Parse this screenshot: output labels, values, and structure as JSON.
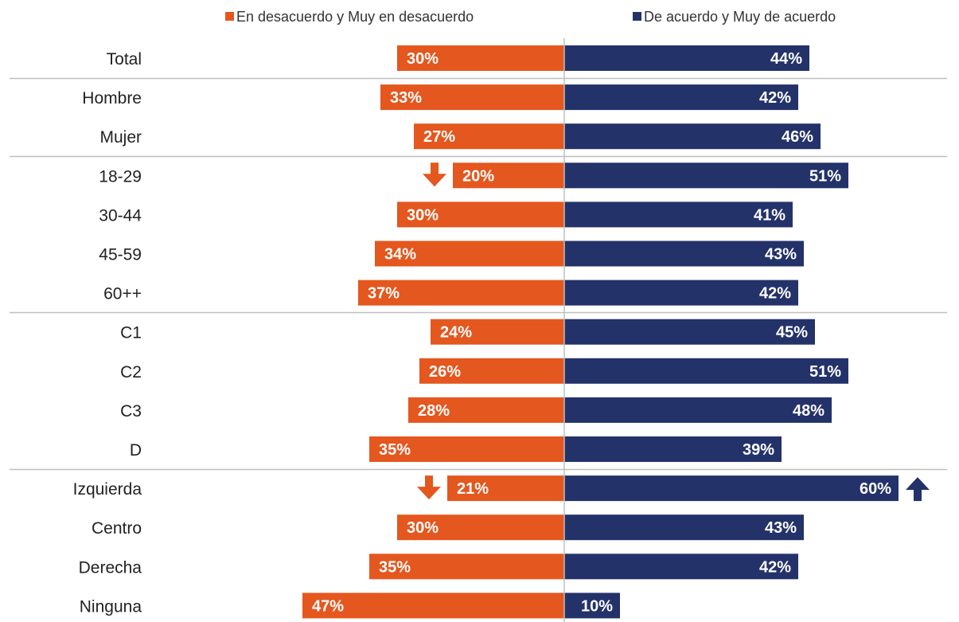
{
  "chart_data": {
    "type": "bar",
    "orientation": "horizontal-diverging",
    "grid": false,
    "legend_position": "top",
    "categories": [
      "Total",
      "Hombre",
      "Mujer",
      "18-29",
      "30-44",
      "45-59",
      "60++",
      "C1",
      "C2",
      "C3",
      "D",
      "Izquierda",
      "Centro",
      "Derecha",
      "Ninguna"
    ],
    "group_separators_after": [
      "Total",
      "Mujer",
      "60++",
      "D"
    ],
    "series": [
      {
        "name": "En desacuerdo y Muy en desacuerdo",
        "color": "#E4571E",
        "direction": "left",
        "values": [
          30,
          33,
          27,
          20,
          30,
          34,
          37,
          24,
          26,
          28,
          35,
          21,
          30,
          35,
          47
        ],
        "labels": [
          "30%",
          "33%",
          "27%",
          "20%",
          "30%",
          "34%",
          "37%",
          "24%",
          "26%",
          "28%",
          "35%",
          "21%",
          "30%",
          "35%",
          "47%"
        ]
      },
      {
        "name": "De acuerdo y Muy de acuerdo",
        "color": "#24326A",
        "direction": "right",
        "values": [
          44,
          42,
          46,
          51,
          41,
          43,
          42,
          45,
          51,
          48,
          39,
          60,
          43,
          42,
          10
        ],
        "labels": [
          "44%",
          "42%",
          "46%",
          "51%",
          "41%",
          "43%",
          "42%",
          "45%",
          "51%",
          "48%",
          "39%",
          "60%",
          "43%",
          "42%",
          "10%"
        ]
      }
    ],
    "markers": [
      {
        "category": "18-29",
        "series": "En desacuerdo y Muy en desacuerdo",
        "symbol": "down-arrow-icon",
        "color": "#E4571E"
      },
      {
        "category": "Izquierda",
        "series": "En desacuerdo y Muy en desacuerdo",
        "symbol": "down-arrow-icon",
        "color": "#E4571E"
      },
      {
        "category": "Izquierda",
        "series": "De acuerdo y Muy de acuerdo",
        "symbol": "up-arrow-icon",
        "color": "#24326A"
      }
    ]
  }
}
